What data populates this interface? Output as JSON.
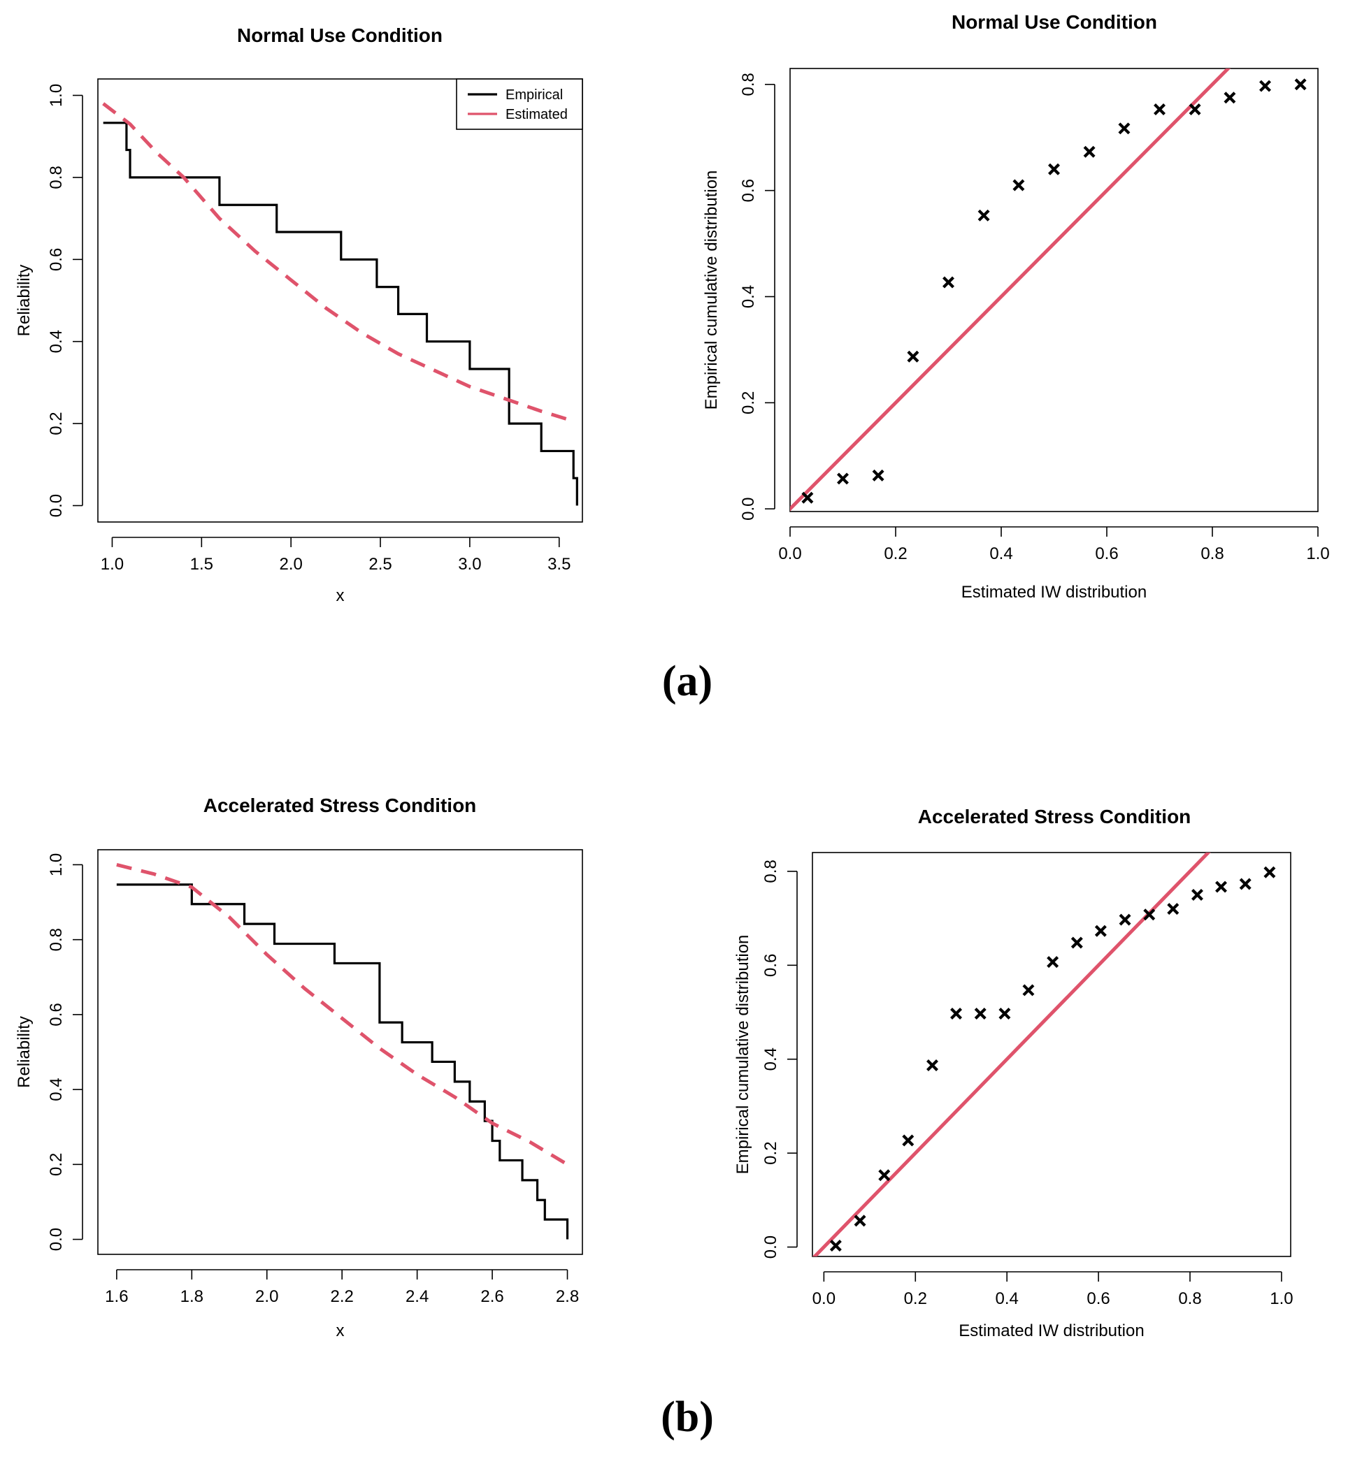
{
  "panel_labels": [
    "(a)",
    "(b)"
  ],
  "colors": {
    "empirical": "#000000",
    "estimated": "#DF536B"
  },
  "chart_data": [
    {
      "type": "line",
      "title": "Normal Use Condition",
      "xlabel": "x",
      "ylabel": "Reliability",
      "xlim": [
        0.92,
        3.63
      ],
      "ylim": [
        -0.04,
        1.04
      ],
      "xticks": [
        1.0,
        1.5,
        2.0,
        2.5,
        3.0,
        3.5
      ],
      "xtick_labels": [
        "1.0",
        "1.5",
        "2.0",
        "2.5",
        "3.0",
        "3.5"
      ],
      "yticks": [
        0.0,
        0.2,
        0.4,
        0.6,
        0.8,
        1.0
      ],
      "ytick_labels": [
        "0.0",
        "0.2",
        "0.4",
        "0.6",
        "0.8",
        "1.0"
      ],
      "legend": {
        "position": "top-right",
        "entries": [
          "Empirical",
          "Estimated"
        ]
      },
      "series": [
        {
          "name": "Empirical",
          "style": "step",
          "x": [
            0.95,
            1.08,
            1.1,
            1.6,
            1.92,
            2.28,
            2.48,
            2.6,
            2.76,
            3.0,
            3.22,
            3.4,
            3.58,
            3.6
          ],
          "values": [
            0.933,
            0.867,
            0.8,
            0.733,
            0.667,
            0.6,
            0.533,
            0.467,
            0.4,
            0.333,
            0.2,
            0.133,
            0.067,
            0.0
          ]
        },
        {
          "name": "Estimated",
          "style": "dashed",
          "x": [
            0.95,
            1.1,
            1.25,
            1.4,
            1.6,
            1.8,
            2.0,
            2.2,
            2.4,
            2.6,
            2.8,
            3.0,
            3.2,
            3.4,
            3.55
          ],
          "values": [
            0.98,
            0.93,
            0.86,
            0.8,
            0.7,
            0.62,
            0.55,
            0.48,
            0.42,
            0.37,
            0.33,
            0.29,
            0.26,
            0.23,
            0.21
          ]
        }
      ]
    },
    {
      "type": "scatter",
      "title": "Normal Use Condition",
      "xlabel": "Estimated IW distribution",
      "ylabel": "Empirical cumulative distribution",
      "xlim": [
        0.0,
        1.0
      ],
      "ylim": [
        -0.005,
        0.83
      ],
      "xticks": [
        0.0,
        0.2,
        0.4,
        0.6,
        0.8,
        1.0
      ],
      "xtick_labels": [
        "0.0",
        "0.2",
        "0.4",
        "0.6",
        "0.8",
        "1.0"
      ],
      "yticks": [
        0.0,
        0.2,
        0.4,
        0.6,
        0.8
      ],
      "ytick_labels": [
        "0.0",
        "0.2",
        "0.4",
        "0.6",
        "0.8"
      ],
      "reference_line": {
        "slope": 1,
        "intercept": 0
      },
      "x": [
        0.033,
        0.1,
        0.167,
        0.233,
        0.3,
        0.367,
        0.433,
        0.5,
        0.567,
        0.633,
        0.7,
        0.767,
        0.833,
        0.9,
        0.967
      ],
      "values": [
        0.021,
        0.057,
        0.063,
        0.287,
        0.427,
        0.553,
        0.61,
        0.64,
        0.673,
        0.717,
        0.753,
        0.753,
        0.775,
        0.797,
        0.8
      ]
    },
    {
      "type": "line",
      "title": "Accelerated Stress Condition",
      "xlabel": "x",
      "ylabel": "Reliability",
      "xlim": [
        1.55,
        2.84
      ],
      "ylim": [
        -0.04,
        1.04
      ],
      "xticks": [
        1.6,
        1.8,
        2.0,
        2.2,
        2.4,
        2.6,
        2.8
      ],
      "xtick_labels": [
        "1.6",
        "1.8",
        "2.0",
        "2.2",
        "2.4",
        "2.6",
        "2.8"
      ],
      "yticks": [
        0.0,
        0.2,
        0.4,
        0.6,
        0.8,
        1.0
      ],
      "ytick_labels": [
        "0.0",
        "0.2",
        "0.4",
        "0.6",
        "0.8",
        "1.0"
      ],
      "series": [
        {
          "name": "Empirical",
          "style": "step",
          "x": [
            1.6,
            1.8,
            1.94,
            2.02,
            2.18,
            2.3,
            2.36,
            2.44,
            2.5,
            2.54,
            2.58,
            2.6,
            2.62,
            2.68,
            2.72,
            2.74,
            2.8
          ],
          "values": [
            0.947,
            0.895,
            0.842,
            0.789,
            0.737,
            0.579,
            0.526,
            0.474,
            0.421,
            0.368,
            0.316,
            0.263,
            0.211,
            0.158,
            0.105,
            0.053,
            0.0
          ]
        },
        {
          "name": "Estimated",
          "style": "dashed",
          "x": [
            1.6,
            1.7,
            1.8,
            1.9,
            2.0,
            2.1,
            2.2,
            2.3,
            2.4,
            2.5,
            2.6,
            2.7,
            2.8
          ],
          "values": [
            1.0,
            0.975,
            0.94,
            0.86,
            0.76,
            0.67,
            0.59,
            0.51,
            0.44,
            0.38,
            0.31,
            0.26,
            0.2
          ]
        }
      ]
    },
    {
      "type": "scatter",
      "title": "Accelerated Stress Condition",
      "xlabel": "Estimated IW distribution",
      "ylabel": "Empirical cumulative distribution",
      "xlim": [
        -0.025,
        1.02
      ],
      "ylim": [
        -0.02,
        0.84
      ],
      "xticks": [
        0.0,
        0.2,
        0.4,
        0.6,
        0.8,
        1.0
      ],
      "xtick_labels": [
        "0.0",
        "0.2",
        "0.4",
        "0.6",
        "0.8",
        "1.0"
      ],
      "yticks": [
        0.0,
        0.2,
        0.4,
        0.6,
        0.8
      ],
      "ytick_labels": [
        "0.0",
        "0.2",
        "0.4",
        "0.6",
        "0.8"
      ],
      "reference_line": {
        "slope": 1,
        "intercept": 0
      },
      "x": [
        0.026,
        0.079,
        0.132,
        0.184,
        0.237,
        0.289,
        0.342,
        0.395,
        0.447,
        0.5,
        0.553,
        0.605,
        0.658,
        0.711,
        0.763,
        0.816,
        0.868,
        0.921,
        0.974
      ],
      "values": [
        0.003,
        0.056,
        0.153,
        0.227,
        0.387,
        0.497,
        0.497,
        0.497,
        0.547,
        0.607,
        0.648,
        0.673,
        0.697,
        0.708,
        0.72,
        0.75,
        0.767,
        0.773,
        0.798
      ]
    }
  ]
}
